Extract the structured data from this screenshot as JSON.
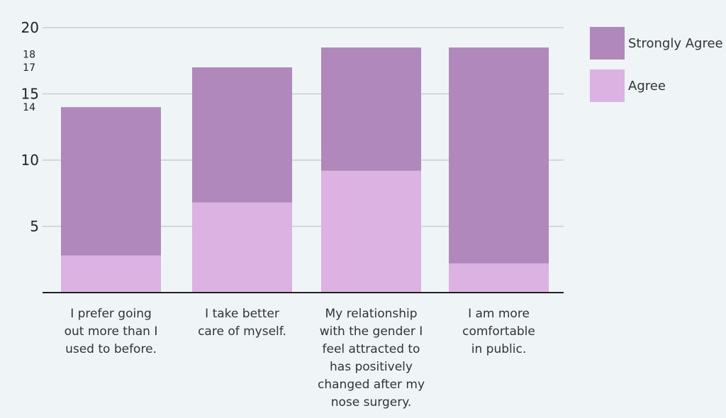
{
  "chart_data": {
    "type": "bar",
    "stacked": true,
    "categories": [
      [
        "I prefer going",
        "out more than I",
        "used to before."
      ],
      [
        "I take better",
        "care of myself."
      ],
      [
        "My relationship",
        "with the gender I",
        "feel attracted to",
        "has positively",
        "changed after my",
        "nose surgery."
      ],
      [
        "I am more",
        "comfortable",
        "in public."
      ]
    ],
    "series": [
      {
        "name": "Agree",
        "color": "#dbb2e2",
        "values": [
          2.8,
          6.8,
          9.2,
          2.2
        ]
      },
      {
        "name": "Strongly Agree",
        "color": "#b088bc",
        "values": [
          11.2,
          10.2,
          9.3,
          16.3
        ]
      }
    ],
    "ylim": [
      0,
      20
    ],
    "yticks_major": [
      "20",
      "15",
      "10",
      "5"
    ],
    "yticks_minor": [
      "18",
      "17",
      "14"
    ],
    "grid": true,
    "legend_position": "top-right",
    "legend": [
      "Strongly Agree",
      "Agree"
    ]
  }
}
